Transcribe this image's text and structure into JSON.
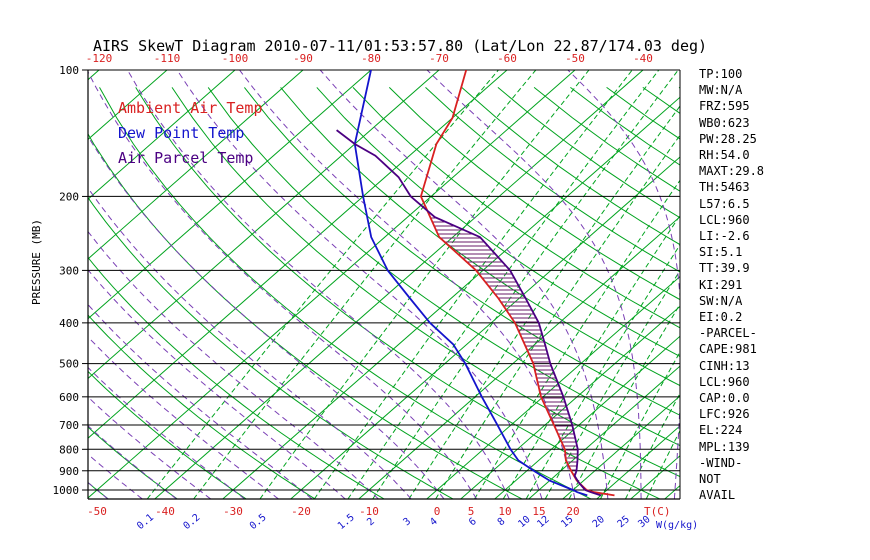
{
  "title": "AIRS SkewT Diagram 2010-07-11/01:53:57.80 (Lat/Lon 22.87/174.03 deg)",
  "colors": {
    "ambient": "#d92121",
    "dewpoint": "#1414cc",
    "parcel": "#4b0082",
    "isoline_green": "#00a31e",
    "moist_adiabat": "#7a3fb5",
    "hatch": "#6a1b6a",
    "axis_black": "#000000",
    "temp_label_red": "#d92121",
    "mixing_label_blue": "#1414cc"
  },
  "legend": [
    {
      "label": "Ambient Air Temp",
      "color_key": "ambient"
    },
    {
      "label": "Dew Point Temp",
      "color_key": "dewpoint"
    },
    {
      "label": "Air Parcel Temp",
      "color_key": "parcel"
    }
  ],
  "axes": {
    "pressure_label": "PRESSURE (MB)",
    "pressure_ticks": [
      100,
      200,
      300,
      400,
      500,
      600,
      700,
      800,
      900,
      1000
    ],
    "top_temp_ticks": [
      -120,
      -110,
      -100,
      -90,
      -80,
      -70,
      -60,
      -50,
      -40
    ],
    "bottom_temp_ticks": [
      -50,
      -40,
      -30,
      -20,
      -10,
      0,
      5,
      10,
      15,
      20
    ],
    "bottom_temp_unit": "T(C)",
    "mixing_ratio_ticks": [
      0.1,
      0.2,
      0.5,
      1.5,
      2,
      3,
      4,
      6,
      8,
      10,
      12,
      15,
      20,
      25,
      30
    ],
    "mixing_ratio_unit": "W(g/kg)"
  },
  "stats_panel": [
    "TP:100",
    "MW:N/A",
    "FRZ:595",
    "WB0:623",
    "PW:28.25",
    "RH:54.0",
    "MAXT:29.8",
    "TH:5463",
    "L57:6.5",
    "LCL:960",
    "LI:-2.6",
    "SI:5.1",
    "TT:39.9",
    "KI:291",
    "SW:N/A",
    "EI:0.2",
    "-PARCEL-",
    "CAPE:981",
    "CINH:13",
    "LCL:960",
    "CAP:0.0",
    "LFC:926",
    "EL:224",
    "MPL:139",
    "-WIND-",
    "NOT",
    "AVAIL"
  ],
  "chart_data": {
    "type": "line",
    "diagram": "skew-t-log-p",
    "pressure_range_mb": [
      100,
      1050
    ],
    "top_axis_temp_range_C": [
      -120,
      -40
    ],
    "bottom_axis_temp_range_C": [
      -50,
      20
    ],
    "series": [
      {
        "name": "Ambient Air Temp",
        "color_key": "ambient",
        "points": [
          [
            1030,
            27
          ],
          [
            1012,
            23.5
          ],
          [
            1000,
            22
          ],
          [
            950,
            19
          ],
          [
            900,
            16.5
          ],
          [
            850,
            14
          ],
          [
            800,
            12
          ],
          [
            700,
            6.3
          ],
          [
            600,
            -0.3
          ],
          [
            500,
            -7
          ],
          [
            450,
            -11.5
          ],
          [
            400,
            -16.5
          ],
          [
            350,
            -23
          ],
          [
            300,
            -31
          ],
          [
            250,
            -42
          ],
          [
            200,
            -51.5
          ],
          [
            150,
            -58
          ],
          [
            130,
            -60
          ],
          [
            100,
            -66
          ]
        ]
      },
      {
        "name": "Dew Point Temp",
        "color_key": "dewpoint",
        "points": [
          [
            1030,
            23
          ],
          [
            1012,
            21
          ],
          [
            1000,
            20
          ],
          [
            950,
            15
          ],
          [
            900,
            11
          ],
          [
            850,
            7
          ],
          [
            800,
            4
          ],
          [
            700,
            -2
          ],
          [
            600,
            -9
          ],
          [
            500,
            -17
          ],
          [
            450,
            -22
          ],
          [
            400,
            -29
          ],
          [
            350,
            -36
          ],
          [
            300,
            -44
          ],
          [
            250,
            -52
          ],
          [
            200,
            -60
          ],
          [
            150,
            -70
          ],
          [
            100,
            -80
          ]
        ]
      },
      {
        "name": "Air Parcel Temp",
        "color_key": "parcel",
        "points": [
          [
            1030,
            25
          ],
          [
            1012,
            23
          ],
          [
            1000,
            21.8
          ],
          [
            960,
            19.6
          ],
          [
            926,
            17.9
          ],
          [
            900,
            17.3
          ],
          [
            850,
            15.7
          ],
          [
            800,
            13.9
          ],
          [
            700,
            9
          ],
          [
            600,
            3
          ],
          [
            500,
            -4.5
          ],
          [
            450,
            -8.5
          ],
          [
            400,
            -13
          ],
          [
            350,
            -19
          ],
          [
            300,
            -26
          ],
          [
            250,
            -36
          ],
          [
            224,
            -46
          ],
          [
            200,
            -53
          ],
          [
            180,
            -58
          ],
          [
            160,
            -65
          ],
          [
            150,
            -70
          ],
          [
            139,
            -75
          ]
        ]
      }
    ],
    "cape_region": {
      "between": [
        "Air Parcel Temp",
        "Ambient Air Temp"
      ],
      "from_mb": 926,
      "to_mb": 224
    },
    "background": {
      "isotherms_C": [
        -160,
        -150,
        -140,
        -130,
        -120,
        -110,
        -100,
        -90,
        -80,
        -70,
        -60,
        -50,
        -40,
        -30,
        -20,
        -10,
        0,
        5,
        10,
        15,
        20,
        25,
        30,
        35,
        40
      ],
      "dry_adiabats_C": [
        -50,
        -40,
        -30,
        -20,
        -10,
        0,
        10,
        20,
        30,
        40,
        50,
        60,
        70,
        80,
        90,
        100,
        110,
        120,
        130,
        140,
        150,
        160,
        170,
        180,
        190
      ],
      "moist_adiabats_C": [
        -60,
        -55,
        -50,
        -45,
        -40,
        -35,
        -30,
        -25,
        -20,
        -15,
        -10,
        -5,
        0,
        5,
        10,
        15,
        20,
        25,
        30,
        35
      ],
      "mixing_ratio_lines_gkg": [
        0.1,
        0.2,
        0.5,
        1,
        1.5,
        2,
        3,
        4,
        6,
        8,
        10,
        12,
        15,
        20,
        25,
        30
      ]
    }
  }
}
